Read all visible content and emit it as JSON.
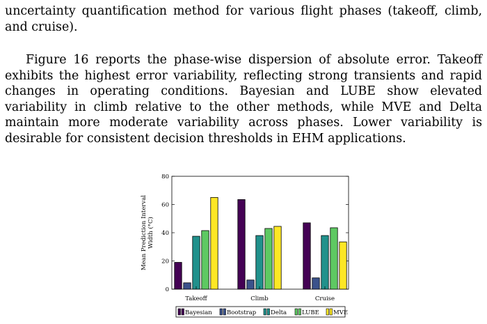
{
  "paragraphs": [
    "uncertainty quantification method for various flight phases (takeoff, climb, and cruise).",
    "Figure 16 reports the phase-wise dispersion of absolute error. Takeoff exhibits the highest error variability, reflecting strong transients and rapid changes in operating conditions. Bayesian and LUBE show elevated variability in climb relative to the other methods, while MVE and Delta maintain more moderate variability across phases. Lower variability is desirable for consistent decision thresholds in EHM applications."
  ],
  "chart_data": {
    "type": "bar",
    "categories": [
      "Takeoff",
      "Climb",
      "Cruise"
    ],
    "ylabel_lines": [
      "Mean Prediction Interval",
      "Width (°C)"
    ],
    "ylim": [
      0,
      80
    ],
    "yticks": [
      "0",
      "20",
      "40",
      "60",
      "80"
    ],
    "legend_placement": "bottom",
    "series": [
      {
        "name": "Bayesian",
        "color": "#440154",
        "values": [
          19,
          63.5,
          47
        ]
      },
      {
        "name": "Bootstrap",
        "color": "#3b528b",
        "values": [
          4.5,
          6.5,
          8
        ]
      },
      {
        "name": "Delta",
        "color": "#21918c",
        "values": [
          37.5,
          38,
          38
        ]
      },
      {
        "name": "LUBE",
        "color": "#5ec962",
        "values": [
          41.5,
          43,
          43.5
        ]
      },
      {
        "name": "MVE",
        "color": "#fde725",
        "values": [
          65,
          44.5,
          33.5
        ]
      }
    ]
  }
}
